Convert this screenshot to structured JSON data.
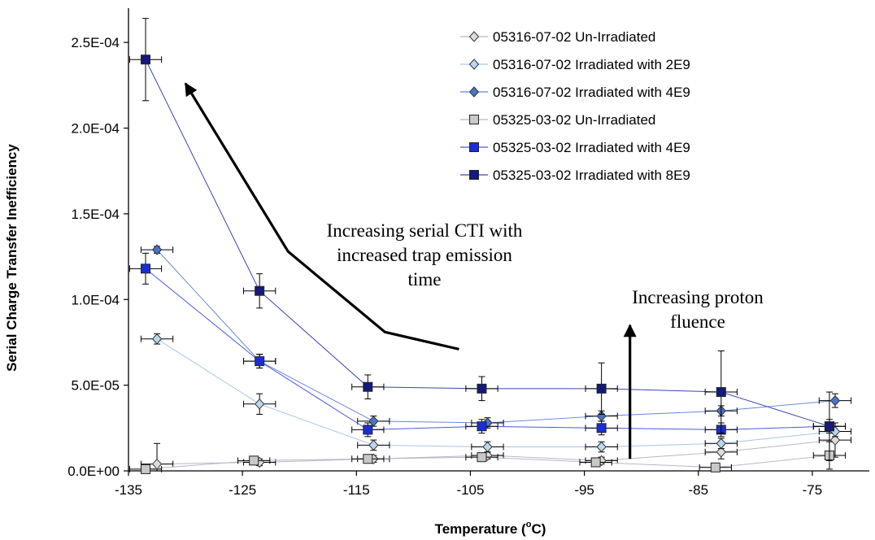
{
  "chart_data": {
    "type": "scatter",
    "xlabel": "Temperature (°C)",
    "xlabel_prefix": "Temperature (",
    "xlabel_unit_sup": "o",
    "xlabel_suffix": "C)",
    "ylabel": "Serial Charge Transfer Inefficiency",
    "xlim": [
      -135,
      -70
    ],
    "ylim": [
      0,
      0.00027
    ],
    "x_ticks": [
      -135,
      -125,
      -115,
      -105,
      -95,
      -85,
      -75
    ],
    "x_tick_labels": [
      "-135",
      "-125",
      "-115",
      "-105",
      "-95",
      "-85",
      "-75"
    ],
    "y_ticks": [
      0,
      5e-05,
      0.0001,
      0.00015,
      0.0002,
      0.00025
    ],
    "y_tick_labels": [
      "0.0E+00",
      "5.0E-05",
      "1.0E-04",
      "1.5E-04",
      "2.0E-04",
      "2.5E-04"
    ],
    "grid": false,
    "legend_position": "top-right",
    "x_error": 1.4,
    "series": [
      {
        "name": "05316-07-02 Un-Irradiated",
        "marker": "diamond",
        "fill": "#dcdcdc",
        "line": "#b8b8c8",
        "x": [
          -132.5,
          -123.5,
          -113.5,
          -103.5,
          -93.5,
          -83,
          -73
        ],
        "y": [
          4e-06,
          5e-06,
          7e-06,
          9e-06,
          6e-06,
          1.1e-05,
          1.8e-05
        ],
        "y_err": [
          1.2e-05,
          2e-06,
          2e-06,
          2e-06,
          2e-06,
          4e-06,
          1e-05
        ]
      },
      {
        "name": "05316-07-02 Irradiated with 2E9",
        "marker": "diamond",
        "fill": "#b8d8ee",
        "line": "#a6c6e6",
        "x": [
          -132.5,
          -123.5,
          -113.5,
          -103.5,
          -93.5,
          -83,
          -73
        ],
        "y": [
          7.7e-05,
          3.9e-05,
          1.5e-05,
          1.4e-05,
          1.4e-05,
          1.6e-05,
          2.3e-05
        ],
        "y_err": [
          3e-06,
          6e-06,
          3e-06,
          3e-06,
          3e-06,
          3e-06,
          3e-06
        ]
      },
      {
        "name": "05316-07-02 Irradiated with 4E9",
        "marker": "diamond",
        "fill": "#4a74c9",
        "line": "#6688dd",
        "x": [
          -132.5,
          -123.5,
          -113.5,
          -103.5,
          -93.5,
          -83,
          -73
        ],
        "y": [
          0.000129,
          6.4e-05,
          2.9e-05,
          2.8e-05,
          3.2e-05,
          3.5e-05,
          4.1e-05
        ],
        "y_err": [
          2e-06,
          4e-06,
          3e-06,
          3e-06,
          3e-06,
          3e-06,
          4e-06
        ]
      },
      {
        "name": "05325-03-02 Un-Irradiated",
        "marker": "square",
        "fill": "#c8c8c8",
        "line": "#b8b8c8",
        "x": [
          -133.5,
          -124,
          -114,
          -104,
          -94,
          -83.5,
          -73.5
        ],
        "y": [
          1e-06,
          6e-06,
          7e-06,
          8e-06,
          5e-06,
          2e-06,
          9e-06
        ],
        "y_err": [
          1e-06,
          2e-06,
          2e-06,
          2e-06,
          2e-06,
          2e-06,
          8e-06
        ]
      },
      {
        "name": "05325-03-02 Irradiated with 4E9",
        "marker": "square",
        "fill": "#1a2ed8",
        "line": "#4a5ae0",
        "x": [
          -133.5,
          -123.5,
          -114,
          -104,
          -93.5,
          -83,
          -73.5
        ],
        "y": [
          0.000118,
          6.4e-05,
          2.4e-05,
          2.6e-05,
          2.5e-05,
          2.4e-05,
          2.6e-05
        ],
        "y_err": [
          9e-06,
          4e-06,
          4e-06,
          4e-06,
          4e-06,
          4e-06,
          4e-06
        ]
      },
      {
        "name": "05325-03-02 Irradiated with 8E9",
        "marker": "square",
        "fill": "#141a7a",
        "line": "#3a44b4",
        "x": [
          -133.5,
          -123.5,
          -114,
          -104,
          -93.5,
          -83,
          -73.5
        ],
        "y": [
          0.00024,
          0.000105,
          4.9e-05,
          4.8e-05,
          4.8e-05,
          4.6e-05,
          2.6e-05
        ],
        "y_err": [
          2.4e-05,
          1e-05,
          7e-06,
          7e-06,
          1.5e-05,
          2.4e-05,
          2e-05
        ]
      }
    ],
    "annotations": [
      {
        "lines": [
          "Increasing serial CTI with",
          "increased trap emission",
          "time"
        ],
        "arrow": [
          [
            -106,
            7.1e-05
          ],
          [
            -112.5,
            8.1e-05
          ],
          [
            -121,
            0.000128
          ],
          [
            -130,
            0.000226
          ]
        ]
      },
      {
        "lines": [
          "Increasing proton",
          "fluence"
        ],
        "arrow": [
          [
            -91,
            7e-06
          ],
          [
            -91,
            8.5e-05
          ]
        ]
      }
    ]
  }
}
